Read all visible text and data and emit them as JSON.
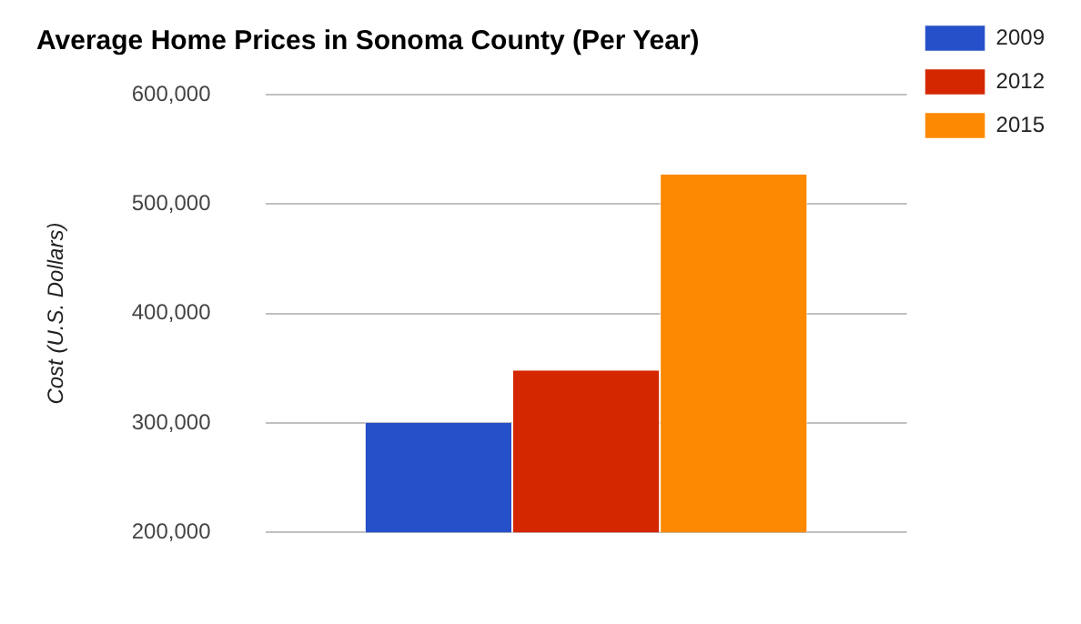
{
  "chart_data": {
    "type": "bar",
    "title": "Average Home Prices in Sonoma County (Per Year)",
    "ylabel": "Cost (U.S. Dollars)",
    "categories": [
      null
    ],
    "series": [
      {
        "name": "2009",
        "color": "#2650c9",
        "values": [
          300000
        ]
      },
      {
        "name": "2012",
        "color": "#d42700",
        "values": [
          348000
        ]
      },
      {
        "name": "2015",
        "color": "#fd8900",
        "values": [
          527000
        ]
      }
    ],
    "ylim": [
      200000,
      600000
    ],
    "yticks": [
      {
        "value": 200000,
        "label": "200,000"
      },
      {
        "value": 300000,
        "label": "300,000"
      },
      {
        "value": 400000,
        "label": "400,000"
      },
      {
        "value": 500000,
        "label": "500,000"
      },
      {
        "value": 600000,
        "label": "600,000"
      }
    ],
    "grid": "y",
    "legend": "top right"
  }
}
